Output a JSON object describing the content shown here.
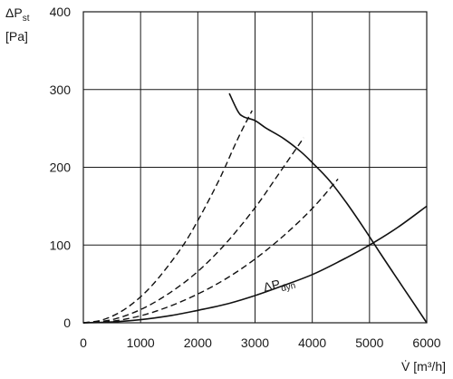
{
  "chart_data": {
    "type": "line",
    "y_label": {
      "main": "ΔP",
      "sub": "st",
      "unit": "[Pa]"
    },
    "x_label": "V̇ [m³/h]",
    "xlim": [
      0,
      6000
    ],
    "ylim": [
      0,
      400
    ],
    "x_ticks": [
      0,
      1000,
      2000,
      3000,
      4000,
      5000,
      6000
    ],
    "y_ticks": [
      0,
      100,
      200,
      300,
      400
    ],
    "grid": true,
    "annotation": {
      "main": "ΔP",
      "sub": "dyn"
    },
    "series": [
      {
        "line_style": "solid",
        "points": [
          [
            2550,
            295
          ],
          [
            2700,
            272
          ],
          [
            2800,
            265
          ],
          [
            3000,
            260
          ],
          [
            3200,
            250
          ],
          [
            3500,
            237
          ],
          [
            3800,
            220
          ],
          [
            4000,
            206
          ],
          [
            4300,
            183
          ],
          [
            4600,
            154
          ],
          [
            4900,
            122
          ],
          [
            5200,
            88
          ],
          [
            5500,
            55
          ],
          [
            5800,
            22
          ],
          [
            6000,
            0
          ]
        ]
      },
      {
        "line_style": "solid",
        "points": [
          [
            0,
            0
          ],
          [
            500,
            1
          ],
          [
            1000,
            4
          ],
          [
            1500,
            9
          ],
          [
            2000,
            16
          ],
          [
            2500,
            24
          ],
          [
            3000,
            35
          ],
          [
            3500,
            48
          ],
          [
            4000,
            62
          ],
          [
            4500,
            80
          ],
          [
            5000,
            100
          ],
          [
            5500,
            123
          ],
          [
            6000,
            150
          ]
        ]
      },
      {
        "line_style": "dashed",
        "points": [
          [
            0,
            0
          ],
          [
            300,
            3
          ],
          [
            600,
            12
          ],
          [
            900,
            27
          ],
          [
            1200,
            48
          ],
          [
            1500,
            75
          ],
          [
            1800,
            106
          ],
          [
            2100,
            145
          ],
          [
            2400,
            188
          ],
          [
            2700,
            237
          ],
          [
            2950,
            273
          ]
        ]
      },
      {
        "line_style": "dashed",
        "points": [
          [
            0,
            0
          ],
          [
            500,
            4
          ],
          [
            1000,
            17
          ],
          [
            1500,
            38
          ],
          [
            2000,
            66
          ],
          [
            2500,
            103
          ],
          [
            3000,
            148
          ],
          [
            3400,
            190
          ],
          [
            3850,
            238
          ]
        ]
      },
      {
        "line_style": "dashed",
        "points": [
          [
            0,
            0
          ],
          [
            500,
            2
          ],
          [
            1000,
            9
          ],
          [
            1500,
            21
          ],
          [
            2000,
            37
          ],
          [
            2500,
            57
          ],
          [
            3000,
            82
          ],
          [
            3500,
            112
          ],
          [
            4000,
            147
          ],
          [
            4450,
            185
          ]
        ]
      }
    ]
  }
}
